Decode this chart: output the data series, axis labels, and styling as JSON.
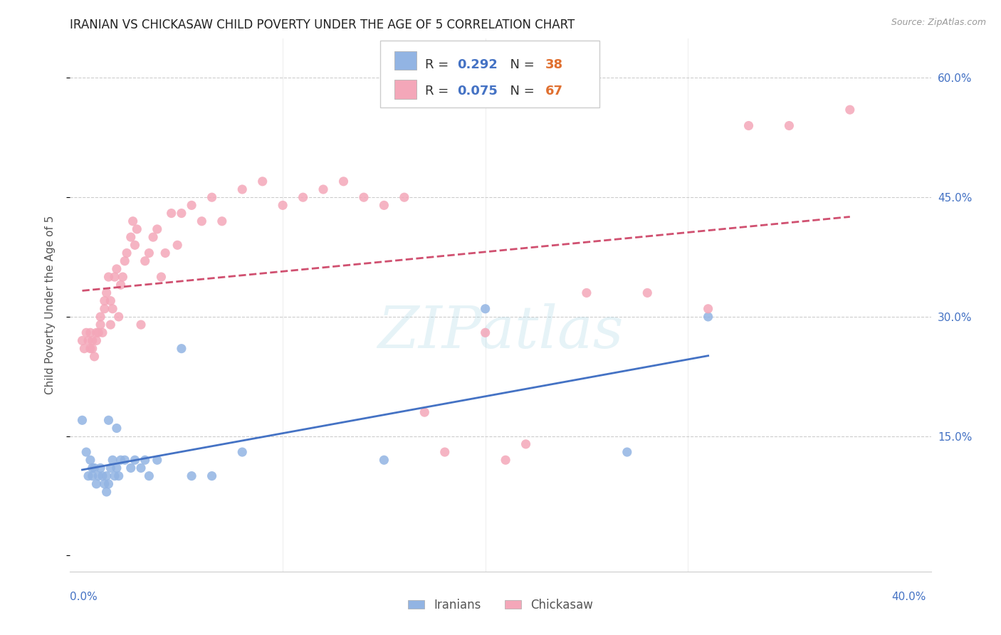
{
  "title": "IRANIAN VS CHICKASAW CHILD POVERTY UNDER THE AGE OF 5 CORRELATION CHART",
  "source": "Source: ZipAtlas.com",
  "ylabel": "Child Poverty Under the Age of 5",
  "y_ticks": [
    0.0,
    0.15,
    0.3,
    0.45,
    0.6
  ],
  "y_tick_labels": [
    "",
    "15.0%",
    "30.0%",
    "45.0%",
    "60.0%"
  ],
  "x_lim": [
    -0.005,
    0.42
  ],
  "y_lim": [
    -0.02,
    0.65
  ],
  "x_bottom_left": "0.0%",
  "x_bottom_right": "40.0%",
  "iranian_color": "#92b4e3",
  "chickasaw_color": "#f4a7b9",
  "iranian_line_color": "#4472c4",
  "chickasaw_line_color": "#d05070",
  "watermark": "ZIPatlas",
  "watermark_color": "#add8e6",
  "R_iranian": "0.292",
  "N_iranian": "38",
  "R_chickasaw": "0.075",
  "N_chickasaw": "67",
  "label_iranian": "Iranians",
  "label_chickasaw": "Chickasaw",
  "R_color": "#4472c4",
  "N_color": "#e07030",
  "bg_color": "#ffffff",
  "grid_color": "#cccccc",
  "title_fontsize": 12,
  "tick_color": "#4472c4",
  "marker_size": 90,
  "iranians_x": [
    0.001,
    0.003,
    0.004,
    0.005,
    0.006,
    0.006,
    0.007,
    0.008,
    0.009,
    0.01,
    0.011,
    0.012,
    0.013,
    0.013,
    0.014,
    0.015,
    0.016,
    0.017,
    0.018,
    0.019,
    0.02,
    0.022,
    0.025,
    0.027,
    0.03,
    0.032,
    0.034,
    0.038,
    0.05,
    0.055,
    0.065,
    0.08,
    0.15,
    0.2,
    0.27,
    0.31,
    0.014,
    0.018
  ],
  "iranians_y": [
    0.17,
    0.13,
    0.1,
    0.12,
    0.11,
    0.1,
    0.11,
    0.09,
    0.1,
    0.11,
    0.1,
    0.09,
    0.08,
    0.1,
    0.09,
    0.11,
    0.12,
    0.1,
    0.11,
    0.1,
    0.12,
    0.12,
    0.11,
    0.12,
    0.11,
    0.12,
    0.1,
    0.12,
    0.26,
    0.1,
    0.1,
    0.13,
    0.12,
    0.31,
    0.13,
    0.3,
    0.17,
    0.16
  ],
  "chickasaw_x": [
    0.001,
    0.002,
    0.003,
    0.004,
    0.005,
    0.005,
    0.006,
    0.006,
    0.007,
    0.008,
    0.008,
    0.009,
    0.01,
    0.01,
    0.011,
    0.012,
    0.012,
    0.013,
    0.014,
    0.015,
    0.015,
    0.016,
    0.017,
    0.018,
    0.019,
    0.02,
    0.021,
    0.022,
    0.023,
    0.025,
    0.026,
    0.027,
    0.028,
    0.03,
    0.032,
    0.034,
    0.036,
    0.038,
    0.04,
    0.042,
    0.045,
    0.048,
    0.05,
    0.055,
    0.06,
    0.065,
    0.07,
    0.08,
    0.09,
    0.1,
    0.11,
    0.12,
    0.13,
    0.14,
    0.15,
    0.16,
    0.17,
    0.18,
    0.2,
    0.21,
    0.22,
    0.25,
    0.28,
    0.31,
    0.33,
    0.35,
    0.38
  ],
  "chickasaw_y": [
    0.27,
    0.26,
    0.28,
    0.27,
    0.26,
    0.28,
    0.27,
    0.26,
    0.25,
    0.28,
    0.27,
    0.28,
    0.3,
    0.29,
    0.28,
    0.32,
    0.31,
    0.33,
    0.35,
    0.29,
    0.32,
    0.31,
    0.35,
    0.36,
    0.3,
    0.34,
    0.35,
    0.37,
    0.38,
    0.4,
    0.42,
    0.39,
    0.41,
    0.29,
    0.37,
    0.38,
    0.4,
    0.41,
    0.35,
    0.38,
    0.43,
    0.39,
    0.43,
    0.44,
    0.42,
    0.45,
    0.42,
    0.46,
    0.47,
    0.44,
    0.45,
    0.46,
    0.47,
    0.45,
    0.44,
    0.45,
    0.18,
    0.13,
    0.28,
    0.12,
    0.14,
    0.33,
    0.33,
    0.31,
    0.54,
    0.54,
    0.56
  ]
}
